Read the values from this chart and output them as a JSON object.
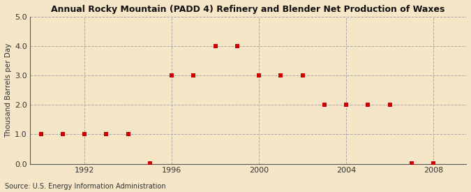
{
  "title": "Annual Rocky Mountain (PADD 4) Refinery and Blender Net Production of Waxes",
  "ylabel": "Thousand Barrels per Day",
  "source": "Source: U.S. Energy Information Administration",
  "background_color": "#f5e6c8",
  "plot_background_color": "#f5e6c8",
  "marker_color": "#cc0000",
  "marker": "s",
  "marker_size": 5,
  "grid_color": "#aaaaaa",
  "grid_linestyle": "--",
  "xlim": [
    1989.5,
    2009.5
  ],
  "ylim": [
    0.0,
    5.0
  ],
  "yticks": [
    0.0,
    1.0,
    2.0,
    3.0,
    4.0,
    5.0
  ],
  "xticks": [
    1992,
    1996,
    2000,
    2004,
    2008
  ],
  "years": [
    1990,
    1991,
    1992,
    1993,
    1994,
    1995,
    1996,
    1997,
    1998,
    1999,
    2000,
    2001,
    2002,
    2003,
    2004,
    2005,
    2006,
    2007,
    2008
  ],
  "values": [
    1.0,
    1.0,
    1.0,
    1.0,
    1.0,
    0.02,
    3.0,
    3.0,
    4.0,
    4.0,
    3.0,
    3.0,
    3.0,
    2.0,
    2.0,
    2.0,
    2.0,
    0.02,
    0.02
  ]
}
